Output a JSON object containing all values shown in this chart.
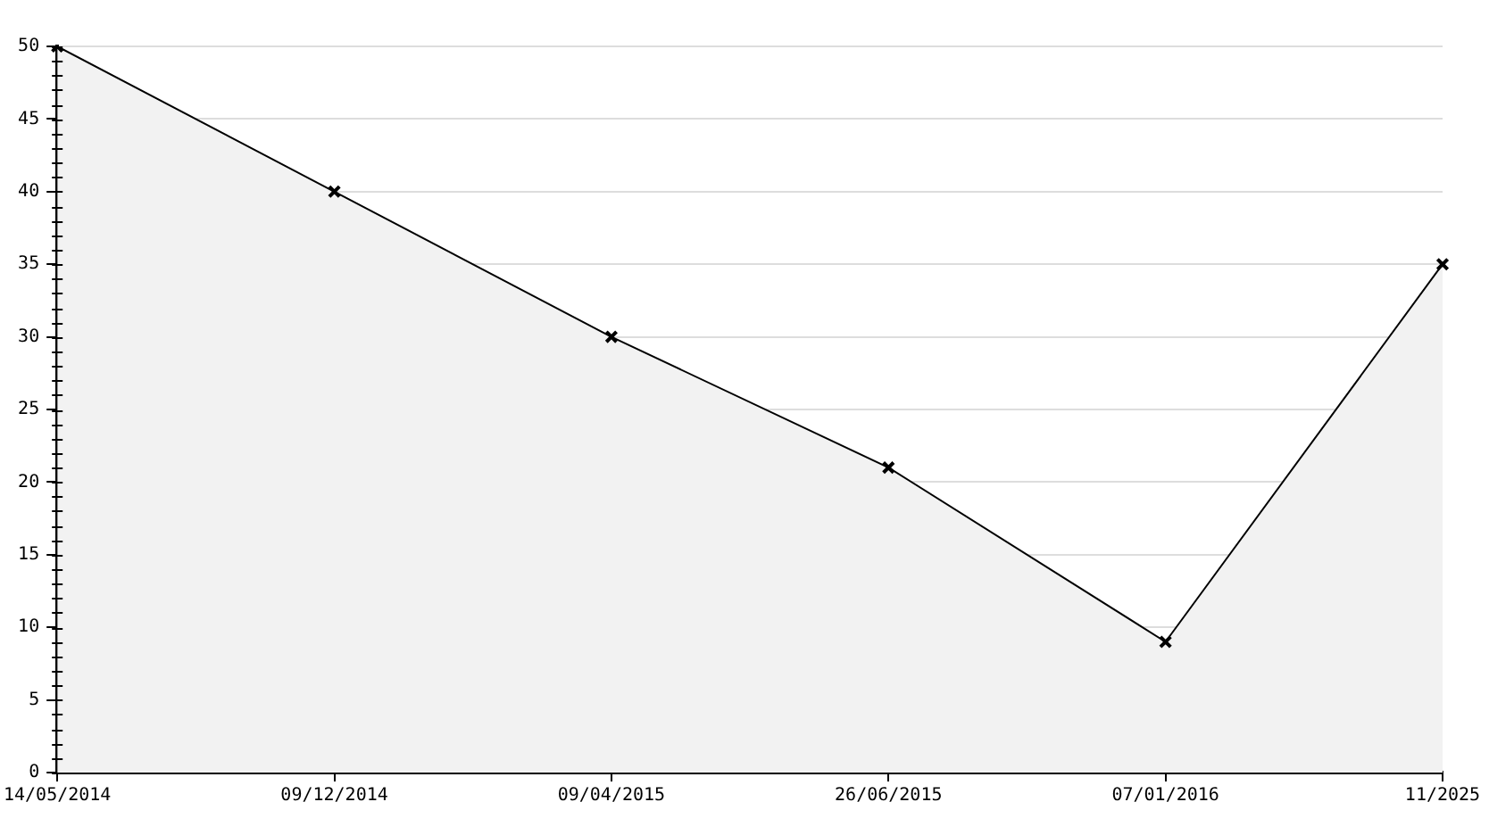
{
  "chart_data": {
    "type": "area",
    "categories": [
      "14/05/2014",
      "09/12/2014",
      "09/04/2015",
      "26/06/2015",
      "07/01/2016",
      "11/2025"
    ],
    "series": [
      {
        "color": "#000000",
        "values": [
          50,
          40,
          30,
          21,
          9,
          35
        ]
      }
    ],
    "ylim": [
      0,
      50
    ],
    "yticks": [
      0,
      5,
      10,
      15,
      20,
      25,
      30,
      35,
      40,
      45,
      50
    ],
    "grid": "y",
    "legend": false,
    "marker": "cross",
    "line_style": "solid"
  }
}
